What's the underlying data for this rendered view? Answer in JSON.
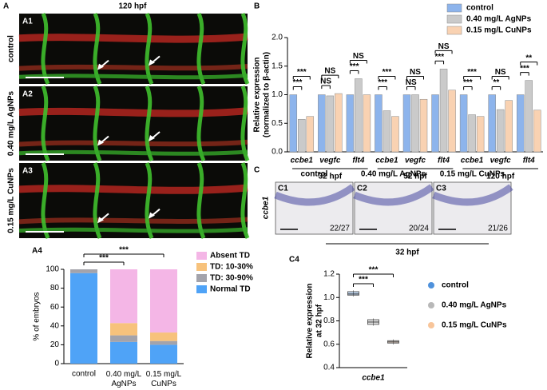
{
  "panel_labels": {
    "a": "A",
    "a1": "A1",
    "a2": "A2",
    "a3": "A3",
    "a4": "A4",
    "b": "B",
    "c": "C",
    "c1": "C1",
    "c2": "C2",
    "c3": "C3",
    "c4": "C4"
  },
  "panel_a": {
    "title": "120 hpf",
    "rows": [
      "control",
      "0.40 mg/L AgNPs",
      "0.15 mg/L CuNPs"
    ]
  },
  "panel_c": {
    "columns": [
      "control",
      "0.40 mg/L AgNPs",
      "0.15 mg/L CuNPs"
    ],
    "gene": "ccbe1",
    "counts": [
      "22/27",
      "20/24",
      "21/26"
    ],
    "stage": "32 hpf"
  },
  "chart_data": [
    {
      "type": "stacked_bar",
      "y_label": "% of embryos",
      "categories": [
        "control",
        "0.40 mg/L AgNPs",
        "0.15 mg/L CuNPs"
      ],
      "series": [
        {
          "name": "Normal TD",
          "color": "#4fa3f7",
          "values": [
            96,
            23,
            20
          ]
        },
        {
          "name": "TD: 30-90%",
          "color": "#a3a3ab",
          "values": [
            4,
            7,
            4
          ]
        },
        {
          "name": "TD: 10-30%",
          "color": "#f7c27c",
          "values": [
            0,
            13,
            9
          ]
        },
        {
          "name": "Absent TD",
          "color": "#f4b6e6",
          "values": [
            0,
            57,
            67
          ]
        }
      ],
      "ylim": [
        0,
        100
      ],
      "yticks": [
        0,
        20,
        40,
        60,
        80,
        100
      ],
      "significance": [
        "***",
        "***"
      ]
    },
    {
      "type": "grouped_bar",
      "y_label": [
        "Relative expression",
        "(normalized to β-actin)"
      ],
      "categories": [
        "ccbe1",
        "vegfc",
        "flt4",
        "ccbe1",
        "vegfc",
        "flt4",
        "ccbe1",
        "vegfc",
        "flt4"
      ],
      "groups": [
        "32 hpf",
        "52 hpf",
        "120 hpf"
      ],
      "series": [
        {
          "name": "control",
          "color": "#8db4ec",
          "values": [
            1.0,
            1.0,
            1.0,
            1.0,
            1.0,
            1.0,
            1.0,
            1.0,
            1.0
          ]
        },
        {
          "name": "0.40 mg/L AgNPs",
          "color": "#cacaca",
          "values": [
            0.57,
            0.98,
            1.28,
            0.72,
            1.0,
            1.45,
            0.65,
            0.74,
            1.25
          ]
        },
        {
          "name": "0.15 mg/L CuNPs",
          "color": "#f9d2b2",
          "values": [
            0.62,
            1.02,
            1.0,
            0.62,
            0.92,
            1.08,
            0.62,
            0.9,
            0.73
          ]
        }
      ],
      "ylim": [
        0,
        2
      ],
      "yticks": [
        {
          "value": 0,
          "label": "0.0"
        },
        0.5,
        {
          "value": 1,
          "label": "1.0"
        },
        1.5,
        {
          "value": 2,
          "label": "2.0"
        }
      ],
      "significance": [
        [
          "***",
          "***"
        ],
        [
          "NS",
          "NS"
        ],
        [
          "***",
          "NS"
        ],
        [
          "***",
          "***"
        ],
        [
          "NS",
          "NS"
        ],
        [
          "***",
          "NS"
        ],
        [
          "***",
          "***"
        ],
        [
          "**",
          "NS"
        ],
        [
          "***",
          "**"
        ]
      ]
    },
    {
      "type": "box",
      "y_label": [
        "Relative expression",
        "at 32 hpf"
      ],
      "categories": [
        "ccbe1"
      ],
      "series": [
        {
          "name": "control",
          "color": "#4f92dc",
          "min": [
            1.01
          ],
          "q1": [
            1.02
          ],
          "median": [
            1.03
          ],
          "q3": [
            1.05
          ],
          "max": [
            1.06
          ]
        },
        {
          "name": "0.40 mg/L AgNPs",
          "color": "#b8b8b8",
          "min": [
            0.76
          ],
          "q1": [
            0.77
          ],
          "median": [
            0.79
          ],
          "q3": [
            0.81
          ],
          "max": [
            0.82
          ]
        },
        {
          "name": "0.15 mg/L CuNPs",
          "color": "#f8c59a",
          "min": [
            0.6
          ],
          "q1": [
            0.61
          ],
          "median": [
            0.62
          ],
          "q3": [
            0.63
          ],
          "max": [
            0.64
          ]
        }
      ],
      "ylim": [
        0.4,
        1.2
      ],
      "yticks": [
        0.4,
        0.6,
        0.8,
        {
          "value": 1,
          "label": "1.0"
        },
        1.2
      ],
      "significance": [
        "***",
        "***"
      ]
    }
  ]
}
